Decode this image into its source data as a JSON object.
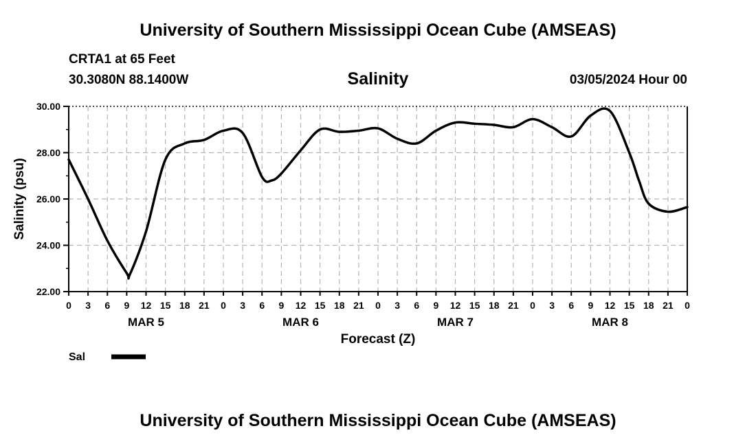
{
  "header": {
    "title": "University of Southern Mississippi Ocean Cube (AMSEAS)",
    "station": "CRTA1 at 65 Feet",
    "coordinates": "30.3080N  88.1400W",
    "chart_title": "Salinity",
    "timestamp": "03/05/2024 Hour 00"
  },
  "footer": {
    "title": "University of Southern Mississippi Ocean Cube (AMSEAS)"
  },
  "chart_data": {
    "type": "line",
    "title": "Salinity",
    "xlabel": "Forecast (Z)",
    "ylabel": "Salinity (psu)",
    "ylim": [
      22,
      30
    ],
    "xlim": [
      0,
      96
    ],
    "y_ticks": [
      "22.00",
      "24.00",
      "26.00",
      "28.00",
      "30.00"
    ],
    "x_tick_labels": [
      "0",
      "3",
      "6",
      "9",
      "12",
      "15",
      "18",
      "21",
      "0",
      "3",
      "6",
      "9",
      "12",
      "15",
      "18",
      "21",
      "0",
      "3",
      "6",
      "9",
      "12",
      "15",
      "18",
      "21",
      "0",
      "3",
      "6",
      "9",
      "12",
      "15",
      "18",
      "21",
      "0"
    ],
    "day_labels": [
      {
        "label": "MAR 5",
        "hour": 12
      },
      {
        "label": "MAR 6",
        "hour": 36
      },
      {
        "label": "MAR 7",
        "hour": 60
      },
      {
        "label": "MAR 8",
        "hour": 84
      }
    ],
    "grid": true,
    "legend": [
      {
        "name": "Sal",
        "color": "#000000"
      }
    ],
    "series": [
      {
        "name": "Sal",
        "x": [
          0,
          3,
          6,
          9,
          9.5,
          12,
          15,
          18,
          21,
          24,
          27,
          30,
          31.5,
          33,
          36,
          39,
          42,
          45,
          48,
          51,
          54,
          57,
          60,
          63,
          66,
          69,
          72,
          75,
          78,
          81,
          84,
          87,
          88.5,
          90,
          93,
          96
        ],
        "values": [
          27.7,
          26.0,
          24.2,
          22.8,
          22.75,
          24.6,
          27.7,
          28.4,
          28.55,
          28.95,
          28.85,
          26.95,
          26.8,
          27.1,
          28.1,
          29.0,
          28.9,
          28.95,
          29.05,
          28.6,
          28.4,
          28.95,
          29.3,
          29.25,
          29.2,
          29.1,
          29.45,
          29.1,
          28.7,
          29.6,
          29.8,
          28.0,
          26.8,
          25.8,
          25.45,
          25.65
        ]
      }
    ]
  }
}
